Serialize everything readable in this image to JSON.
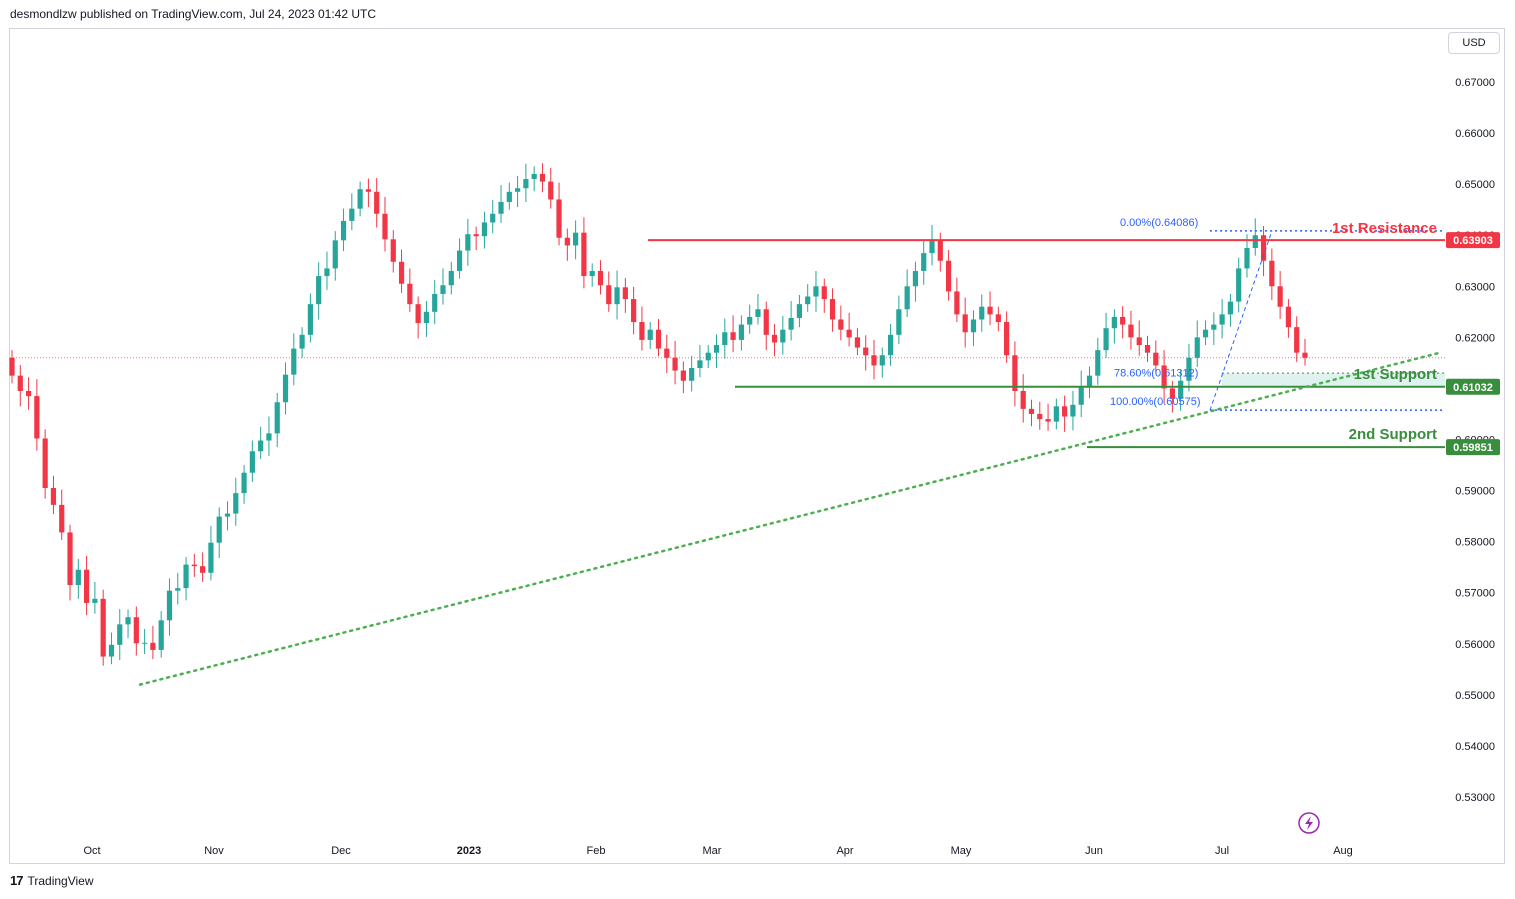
{
  "header": {
    "text": "desmondlzw published on TradingView.com, Jul 24, 2023 01:42 UTC"
  },
  "currency": "USD",
  "footer": {
    "logo_text": "17",
    "brand": "TradingView"
  },
  "colors": {
    "up": "#26a69a",
    "down": "#f23645",
    "resistance": "#f23645",
    "support": "#388e3c",
    "fib": "#2962ff",
    "trend": "#4caf50"
  },
  "chart_data": {
    "type": "candlestick",
    "symbol_quote": "USD",
    "ylim": [
      0.524,
      0.677
    ],
    "y_ticks": [
      "0.67000",
      "0.66000",
      "0.65000",
      "0.64000",
      "0.63000",
      "0.62000",
      "0.61000",
      "0.60000",
      "0.59000",
      "0.58000",
      "0.57000",
      "0.56000",
      "0.55000",
      "0.54000",
      "0.53000"
    ],
    "x_ticks": [
      "Oct",
      "Nov",
      "Dec",
      "2023",
      "Feb",
      "Mar",
      "Apr",
      "May",
      "Jun",
      "Jul",
      "Aug"
    ],
    "closes": [
      0.6125,
      0.6095,
      0.6085,
      0.6002,
      0.5905,
      0.5872,
      0.5818,
      0.5715,
      0.5745,
      0.568,
      0.5688,
      0.5575,
      0.5598,
      0.5638,
      0.5652,
      0.5601,
      0.5602,
      0.5588,
      0.5646,
      0.5704,
      0.5709,
      0.5755,
      0.5752,
      0.5739,
      0.5798,
      0.5849,
      0.5855,
      0.5895,
      0.5935,
      0.5977,
      0.5998,
      0.6012,
      0.6073,
      0.6127,
      0.6178,
      0.6205,
      0.6265,
      0.632,
      0.6335,
      0.639,
      0.6428,
      0.6452,
      0.649,
      0.6485,
      0.6442,
      0.6392,
      0.6348,
      0.6305,
      0.6265,
      0.6228,
      0.625,
      0.6285,
      0.6302,
      0.633,
      0.637,
      0.6402,
      0.6398,
      0.6425,
      0.6442,
      0.6465,
      0.6485,
      0.6492,
      0.651,
      0.652,
      0.6505,
      0.647,
      0.6395,
      0.638,
      0.6405,
      0.632,
      0.633,
      0.6302,
      0.6265,
      0.6298,
      0.6275,
      0.623,
      0.6195,
      0.6215,
      0.6178,
      0.616,
      0.6135,
      0.6115,
      0.614,
      0.6155,
      0.617,
      0.6185,
      0.621,
      0.6195,
      0.6225,
      0.624,
      0.6255,
      0.6205,
      0.619,
      0.6215,
      0.6238,
      0.6265,
      0.628,
      0.63,
      0.6275,
      0.6235,
      0.6215,
      0.62,
      0.618,
      0.6165,
      0.6145,
      0.6165,
      0.6205,
      0.6255,
      0.63,
      0.633,
      0.6365,
      0.639,
      0.635,
      0.629,
      0.6245,
      0.621,
      0.6235,
      0.626,
      0.6245,
      0.623,
      0.6165,
      0.6095,
      0.606,
      0.605,
      0.604,
      0.6035,
      0.6065,
      0.6045,
      0.6068,
      0.6102,
      0.6125,
      0.6175,
      0.6218,
      0.624,
      0.6225,
      0.62,
      0.6185,
      0.617,
      0.6145,
      0.61,
      0.608,
      0.6115,
      0.616,
      0.62,
      0.6215,
      0.6225,
      0.6245,
      0.627,
      0.6335,
      0.6375,
      0.64,
      0.635,
      0.63,
      0.626,
      0.622,
      0.617,
      0.616
    ],
    "levels": [
      {
        "label": "1st Resistance",
        "value": "0.63903"
      },
      {
        "label": "1st Support",
        "value": "0.61032"
      },
      {
        "label": "2nd Support",
        "value": "0.59851"
      }
    ],
    "fib_labels": [
      {
        "text": "0.00%(0.64086)"
      },
      {
        "text": "78.60%(0.61312)"
      },
      {
        "text": "100.00%(0.60575)"
      }
    ],
    "trendline": {
      "from": [
        0.552
      ],
      "to": [
        0.617
      ]
    }
  }
}
